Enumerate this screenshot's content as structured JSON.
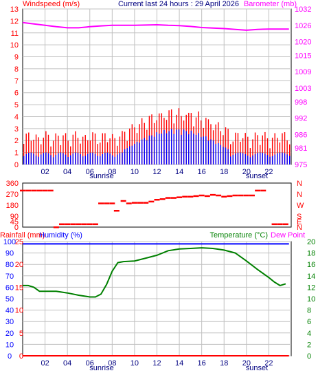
{
  "header": {
    "left_title": "Windspeed (m/s)",
    "center_title": "Current last 24 hours : 29 April 2026",
    "right_title": "Barometer (mb)"
  },
  "labels": {
    "sunrise": "sunrise",
    "sunset": "sunset"
  },
  "colors": {
    "red": "#ff0000",
    "blue": "#0000ff",
    "green": "#008000",
    "magenta": "#ff00ff",
    "grid": "#c0c0c0"
  },
  "chart_data": [
    {
      "id": "wind-barometer",
      "type": "line",
      "title": "Current last 24 hours : 29 April 2026",
      "x_ticks": [
        "02",
        "04",
        "06",
        "08",
        "10",
        "12",
        "14",
        "16",
        "18",
        "20",
        "22"
      ],
      "y_left_label": "Windspeed (m/s)",
      "y_left_ticks": [
        0,
        1,
        2,
        3,
        4,
        5,
        6,
        7,
        8,
        9,
        10,
        11,
        12,
        13
      ],
      "y_right_label": "Barometer (mb)",
      "y_right_ticks": [
        "975",
        "981",
        "986",
        "992",
        "998",
        "1003",
        "1009",
        "1015",
        "1020",
        "1026",
        "1032"
      ],
      "ylim_left": [
        0,
        13
      ],
      "ylim_right": [
        975,
        1032
      ],
      "grid": true,
      "series": [
        {
          "name": "Barometer (mb)",
          "color": "#ff00ff",
          "x": [
            0,
            1,
            2,
            3,
            4,
            5,
            6,
            7,
            8,
            9,
            10,
            11,
            12,
            13,
            14,
            15,
            16,
            17,
            18,
            19,
            20,
            21,
            22,
            23,
            23.8
          ],
          "values": [
            1027.0,
            1026.5,
            1026.0,
            1025.5,
            1025.1,
            1025.1,
            1025.5,
            1025.8,
            1026.0,
            1026.0,
            1026.0,
            1026.1,
            1026.2,
            1026.0,
            1025.9,
            1025.6,
            1025.2,
            1025.0,
            1024.8,
            1024.5,
            1024.2,
            1024.5,
            1024.6,
            1024.6,
            1024.6
          ]
        }
      ]
    },
    {
      "id": "wind-direction",
      "type": "scatter",
      "y_left_ticks": [
        0,
        45,
        90,
        180,
        270,
        360
      ],
      "y_right_ticks": [
        "N",
        "E",
        "S",
        "W",
        "N",
        "N"
      ],
      "ylim": [
        0,
        360
      ],
      "series": [
        {
          "name": "Direction",
          "color": "#ff0000",
          "x": [
            0,
            0.5,
            1,
            1.5,
            2,
            2.5,
            3.0,
            3.5,
            4,
            4.5,
            5,
            5.5,
            6,
            6.5,
            7,
            7.5,
            8,
            8.4,
            9,
            9.5,
            10,
            10.5,
            11,
            11.5,
            12,
            12.5,
            13,
            13.5,
            14,
            14.5,
            15,
            15.5,
            16,
            16.5,
            17,
            17.5,
            18,
            18.5,
            19,
            19.5,
            20,
            20.5,
            21,
            21.5,
            22.5,
            23,
            23.5
          ],
          "values": [
            300,
            300,
            300,
            300,
            300,
            300,
            0,
            25,
            25,
            25,
            25,
            25,
            25,
            25,
            195,
            195,
            195,
            135,
            215,
            195,
            200,
            200,
            200,
            210,
            225,
            230,
            240,
            240,
            245,
            250,
            250,
            255,
            260,
            255,
            265,
            260,
            250,
            255,
            260,
            260,
            260,
            260,
            300,
            300,
            25,
            25,
            25
          ]
        }
      ]
    },
    {
      "id": "temperature",
      "type": "line",
      "y_left_label": "Rainfall (mm)",
      "y_left_ticks": [
        0,
        5,
        10,
        15,
        20,
        25
      ],
      "y_blue_label": "Humidity (%)",
      "y_blue_ticks": [
        0,
        10,
        20,
        30,
        40,
        50,
        60,
        70,
        80,
        90,
        100
      ],
      "y_right_label": "Temperature (°C)",
      "y_right_label_2": "Dew Point",
      "y_right_ticks": [
        0,
        2,
        4,
        6,
        8,
        10,
        12,
        14,
        16,
        18,
        20
      ],
      "ylim_right": [
        0,
        20
      ],
      "grid": true,
      "series": [
        {
          "name": "Temperature (°C)",
          "color": "#008000",
          "x": [
            0,
            0.5,
            1,
            1.5,
            2,
            3,
            4,
            5,
            6,
            6.5,
            7,
            7.5,
            8,
            8.5,
            9,
            10,
            11,
            12,
            13,
            14,
            15,
            16,
            17,
            18,
            19,
            20,
            21,
            22,
            22.5,
            23,
            23.5
          ],
          "values": [
            12.3,
            12.3,
            12.0,
            11.3,
            11.3,
            11.3,
            11.0,
            10.6,
            10.3,
            10.3,
            10.8,
            12.5,
            14.8,
            16.3,
            16.5,
            16.6,
            17.1,
            17.6,
            18.4,
            18.7,
            18.8,
            18.9,
            18.8,
            18.5,
            18.0,
            16.6,
            15.1,
            13.7,
            12.9,
            12.3,
            12.6
          ]
        },
        {
          "name": "Humidity (%)",
          "color": "#0000ff",
          "x": [
            0,
            23.8
          ],
          "values": [
            98,
            98
          ]
        },
        {
          "name": "Rainfall (mm)",
          "color": "#ff0000",
          "x": [
            0,
            23.8
          ],
          "values": [
            0,
            0
          ]
        }
      ]
    }
  ]
}
